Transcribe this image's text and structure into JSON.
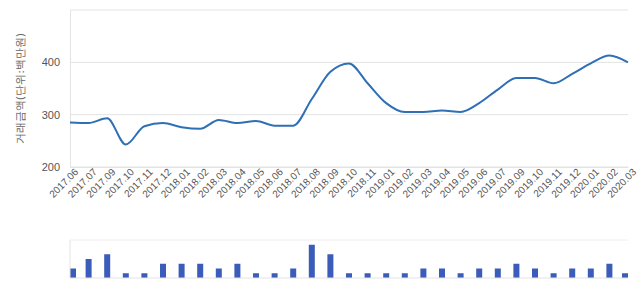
{
  "chart_data": [
    {
      "type": "line",
      "y_label": "거래금액(단위:백만원)",
      "categories": [
        "2017.06",
        "2017.07",
        "2017.09",
        "2017.10",
        "2017.11",
        "2017.12",
        "2018.01",
        "2018.02",
        "2018.03",
        "2018.04",
        "2018.05",
        "2018.06",
        "2018.07",
        "2018.08",
        "2018.09",
        "2018.10",
        "2018.11",
        "2019.01",
        "2019.02",
        "2019.03",
        "2019.04",
        "2019.05",
        "2019.06",
        "2019.07",
        "2019.09",
        "2019.10",
        "2019.11",
        "2019.12",
        "2020.01",
        "2020.02",
        "2020.03"
      ],
      "values": [
        285,
        284,
        293,
        243,
        278,
        284,
        276,
        273,
        290,
        284,
        288,
        279,
        279,
        330,
        382,
        398,
        360,
        322,
        305,
        305,
        308,
        305,
        322,
        348,
        370,
        370,
        360,
        378,
        398,
        413,
        400
      ],
      "color": "#2e6fb5",
      "ylim": [
        200,
        500
      ],
      "yticks": [
        200,
        300,
        400
      ],
      "grid": true
    },
    {
      "type": "bar",
      "values": [
        2,
        4,
        5,
        1,
        1,
        3,
        3,
        3,
        2,
        3,
        1,
        1,
        2,
        7,
        5,
        1,
        1,
        1,
        1,
        2,
        2,
        1,
        2,
        2,
        3,
        2,
        1,
        2,
        2,
        3,
        1
      ],
      "color": "#3b5cb8",
      "ylim": [
        0,
        8
      ],
      "tick_labels": false
    }
  ]
}
